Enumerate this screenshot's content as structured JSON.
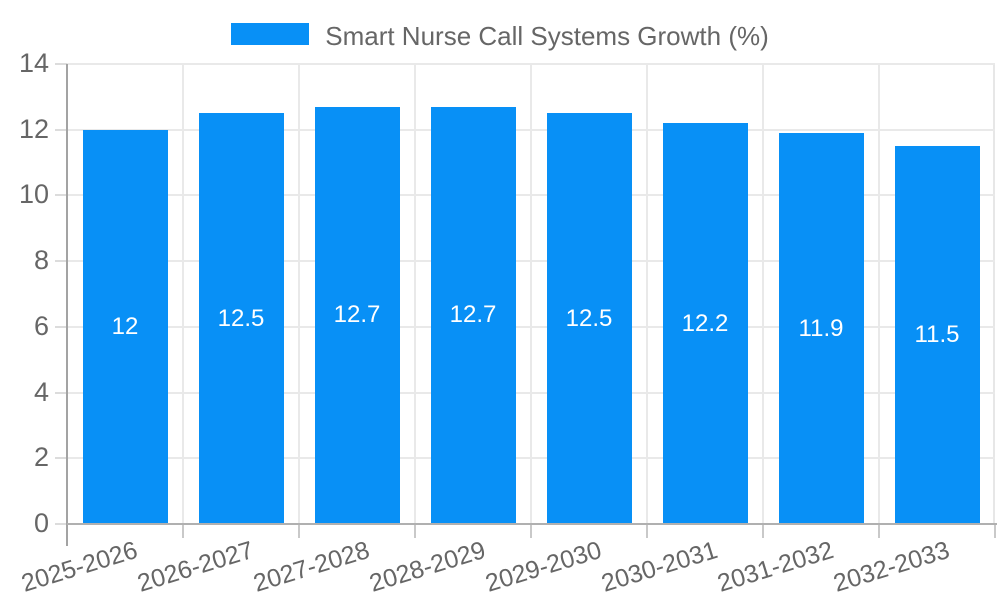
{
  "legend": {
    "items": [
      {
        "label": "Smart Nurse Call Systems Growth (%)",
        "color": "#0890f6"
      }
    ]
  },
  "chart_data": {
    "type": "bar",
    "title": "Smart Nurse Call Systems Growth (%)",
    "categories": [
      "2025-2026",
      "2026-2027",
      "2027-2028",
      "2028-2029",
      "2029-2030",
      "2030-2031",
      "2031-2032",
      "2032-2033"
    ],
    "values": [
      12,
      12.5,
      12.7,
      12.7,
      12.5,
      12.2,
      11.9,
      11.5
    ],
    "value_labels": [
      "12",
      "12.5",
      "12.7",
      "12.7",
      "12.5",
      "12.2",
      "11.9",
      "11.5"
    ],
    "xlabel": "",
    "ylabel": "",
    "ylim": [
      0,
      14
    ],
    "yticks": [
      0,
      2,
      4,
      6,
      8,
      10,
      12,
      14
    ],
    "grid": true,
    "legend_position": "top",
    "bar_color": "#0890f6",
    "value_label_color": "#ffffff",
    "axis_text_color": "#666666",
    "grid_color": "#e9e9e9",
    "axis_line_color": "#a3a3a3",
    "background": "#ffffff"
  }
}
